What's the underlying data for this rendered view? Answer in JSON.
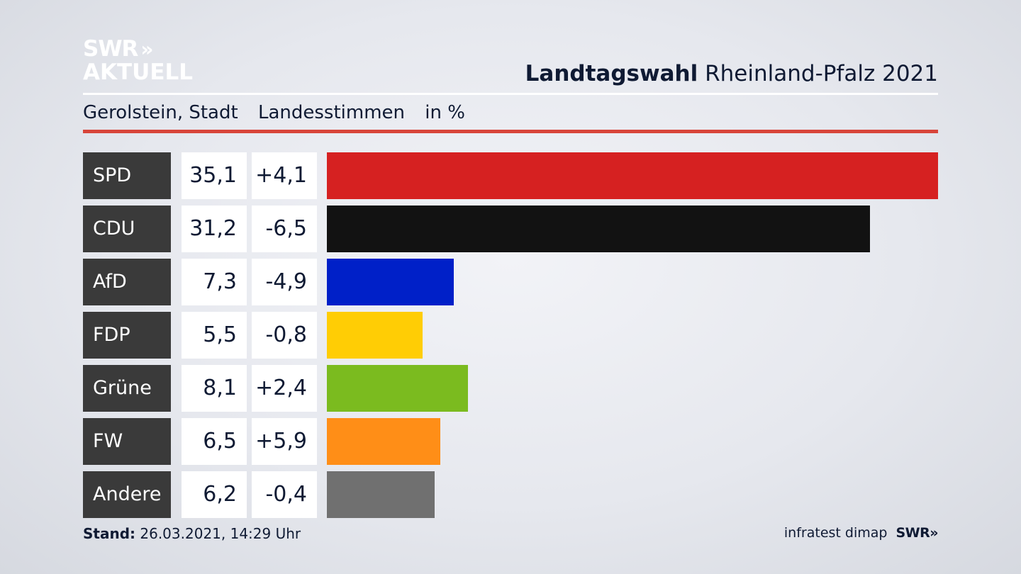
{
  "brand": {
    "line1": "SWR",
    "line2": "AKTUELL",
    "chevron": "»"
  },
  "headline": {
    "bold": "Landtagswahl",
    "regular": "Rheinland-Pfalz 2021"
  },
  "subtitle": {
    "place": "Gerolstein, Stadt",
    "metric": "Landesstimmen",
    "unit": "in %"
  },
  "footer": {
    "stand_label": "Stand:",
    "stand_value": "26.03.2021, 14:29 Uhr",
    "source": "infratest dimap",
    "swr": "SWR»"
  },
  "chart_data": {
    "type": "bar",
    "orientation": "horizontal",
    "categories": [
      "SPD",
      "CDU",
      "AfD",
      "FDP",
      "Grüne",
      "FW",
      "Andere"
    ],
    "values": [
      35.1,
      31.2,
      7.3,
      5.5,
      8.1,
      6.5,
      6.2
    ],
    "values_label": [
      "35,1",
      "31,2",
      "7,3",
      "5,5",
      "8,1",
      "6,5",
      "6,2"
    ],
    "diff_label": [
      "+4,1",
      "-6,5",
      "-4,9",
      "-0,8",
      "+2,4",
      "+5,9",
      "-0,4"
    ],
    "colors": [
      "#d62121",
      "#121212",
      "#0020c8",
      "#ffcd05",
      "#7bbb1f",
      "#ff8e17",
      "#707070"
    ],
    "xlim": [
      0,
      35.1
    ]
  }
}
